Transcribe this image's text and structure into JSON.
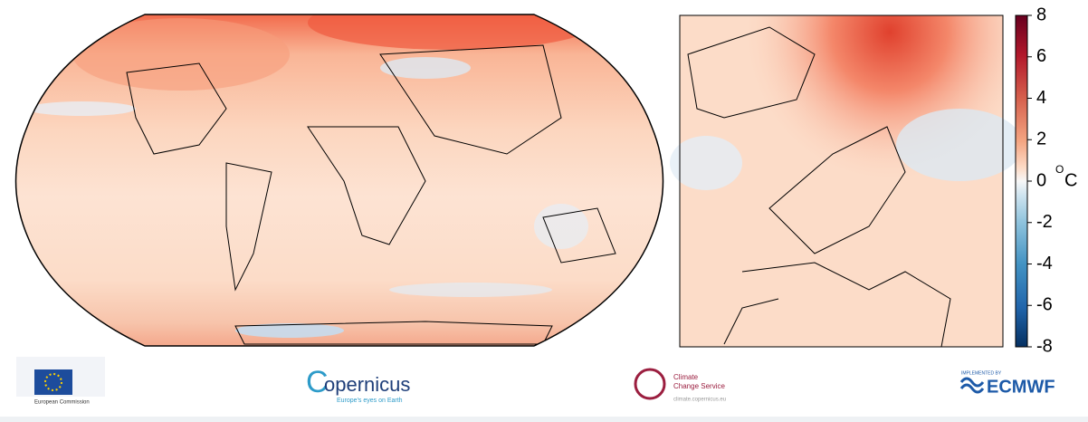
{
  "colorbar": {
    "lim": [
      -8,
      8
    ],
    "ticks": [
      8,
      6,
      4,
      2,
      0,
      -2,
      -4,
      -6,
      -8
    ],
    "unit_degree": "O",
    "unit": "C"
  },
  "logos": {
    "eu": "European Commission",
    "copernicus_name": "opernicus",
    "copernicus_initial": "C",
    "copernicus_tagline": "Europe's eyes on Earth",
    "c3s_line1": "Climate",
    "c3s_line2": "Change Service",
    "c3s_url": "climate.copernicus.eu",
    "ecmwf_small": "IMPLEMENTED BY",
    "ecmwf": "ECMWF"
  }
}
